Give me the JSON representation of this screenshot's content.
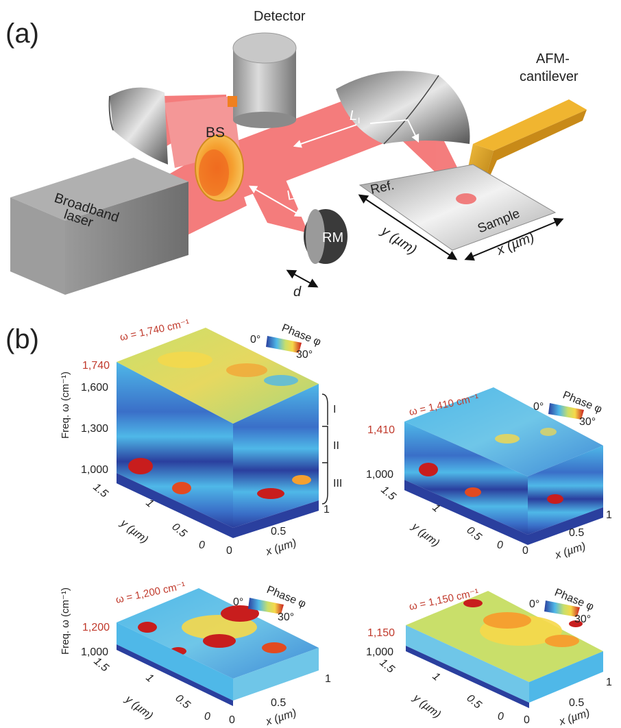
{
  "panel_a": {
    "label": "(a)",
    "detector": "Detector",
    "afm": [
      "AFM-",
      "cantilever"
    ],
    "bs": "BS",
    "laser": [
      "Broadband",
      "laser"
    ],
    "li": "L",
    "li_sub": "I",
    "lr": "L",
    "lr_sub": "R",
    "rm": "RM",
    "d": "d",
    "ref": "Ref.",
    "sample": "Sample",
    "y_axis": "y (µm)",
    "x_axis": "x (µm)"
  },
  "panel_b": {
    "label": "(b)",
    "freq_label": "Freq. ω (cm⁻¹)",
    "phase_label": "Phase φ",
    "phase_min": "0°",
    "phase_max": "30°",
    "y_axis": "y (µm)",
    "x_axis": "x (µm)",
    "band_labels": [
      "I",
      "II",
      "III"
    ],
    "blocks": [
      {
        "omega_title": "ω = 1,740 cm⁻¹",
        "top_freq": "1,740",
        "freq_ticks": [
          "1,740",
          "1,600",
          "1,300",
          "1,000"
        ],
        "y_ticks": [
          "1.5",
          "1",
          "0.5",
          "0"
        ],
        "x_ticks": [
          "0",
          "0.5",
          "1"
        ]
      },
      {
        "omega_title": "ω = 1,410 cm⁻¹",
        "top_freq": "1,410",
        "freq_ticks": [
          "1,410",
          "1,000"
        ],
        "y_ticks": [
          "1.5",
          "1",
          "0.5",
          "0"
        ],
        "x_ticks": [
          "0",
          "0.5",
          "1"
        ]
      },
      {
        "omega_title": "ω = 1,200 cm⁻¹",
        "top_freq": "1,200",
        "freq_ticks": [
          "1,200",
          "1,000"
        ],
        "y_ticks": [
          "1.5",
          "1",
          "0.5",
          "0"
        ],
        "x_ticks": [
          "0",
          "0.5",
          "1"
        ]
      },
      {
        "omega_title": "ω = 1,150 cm⁻¹",
        "top_freq": "1,150",
        "freq_ticks": [
          "1,150",
          "1,000"
        ],
        "y_ticks": [
          "1.5",
          "1",
          "0.5",
          "0"
        ],
        "x_ticks": [
          "0",
          "0.5",
          "1"
        ]
      }
    ]
  },
  "colors": {
    "beam": "#f04b4b",
    "beam_light": "#f7a0a0",
    "cantilever": "#e0a020",
    "laser_box": "#8a8a8a",
    "title_red": "#c0392b",
    "map_low": "#2a3f9e",
    "map_mid": "#4fb8e8",
    "map_green": "#c9df6a",
    "map_yellow": "#f6d84a",
    "map_high": "#c81d1d"
  }
}
